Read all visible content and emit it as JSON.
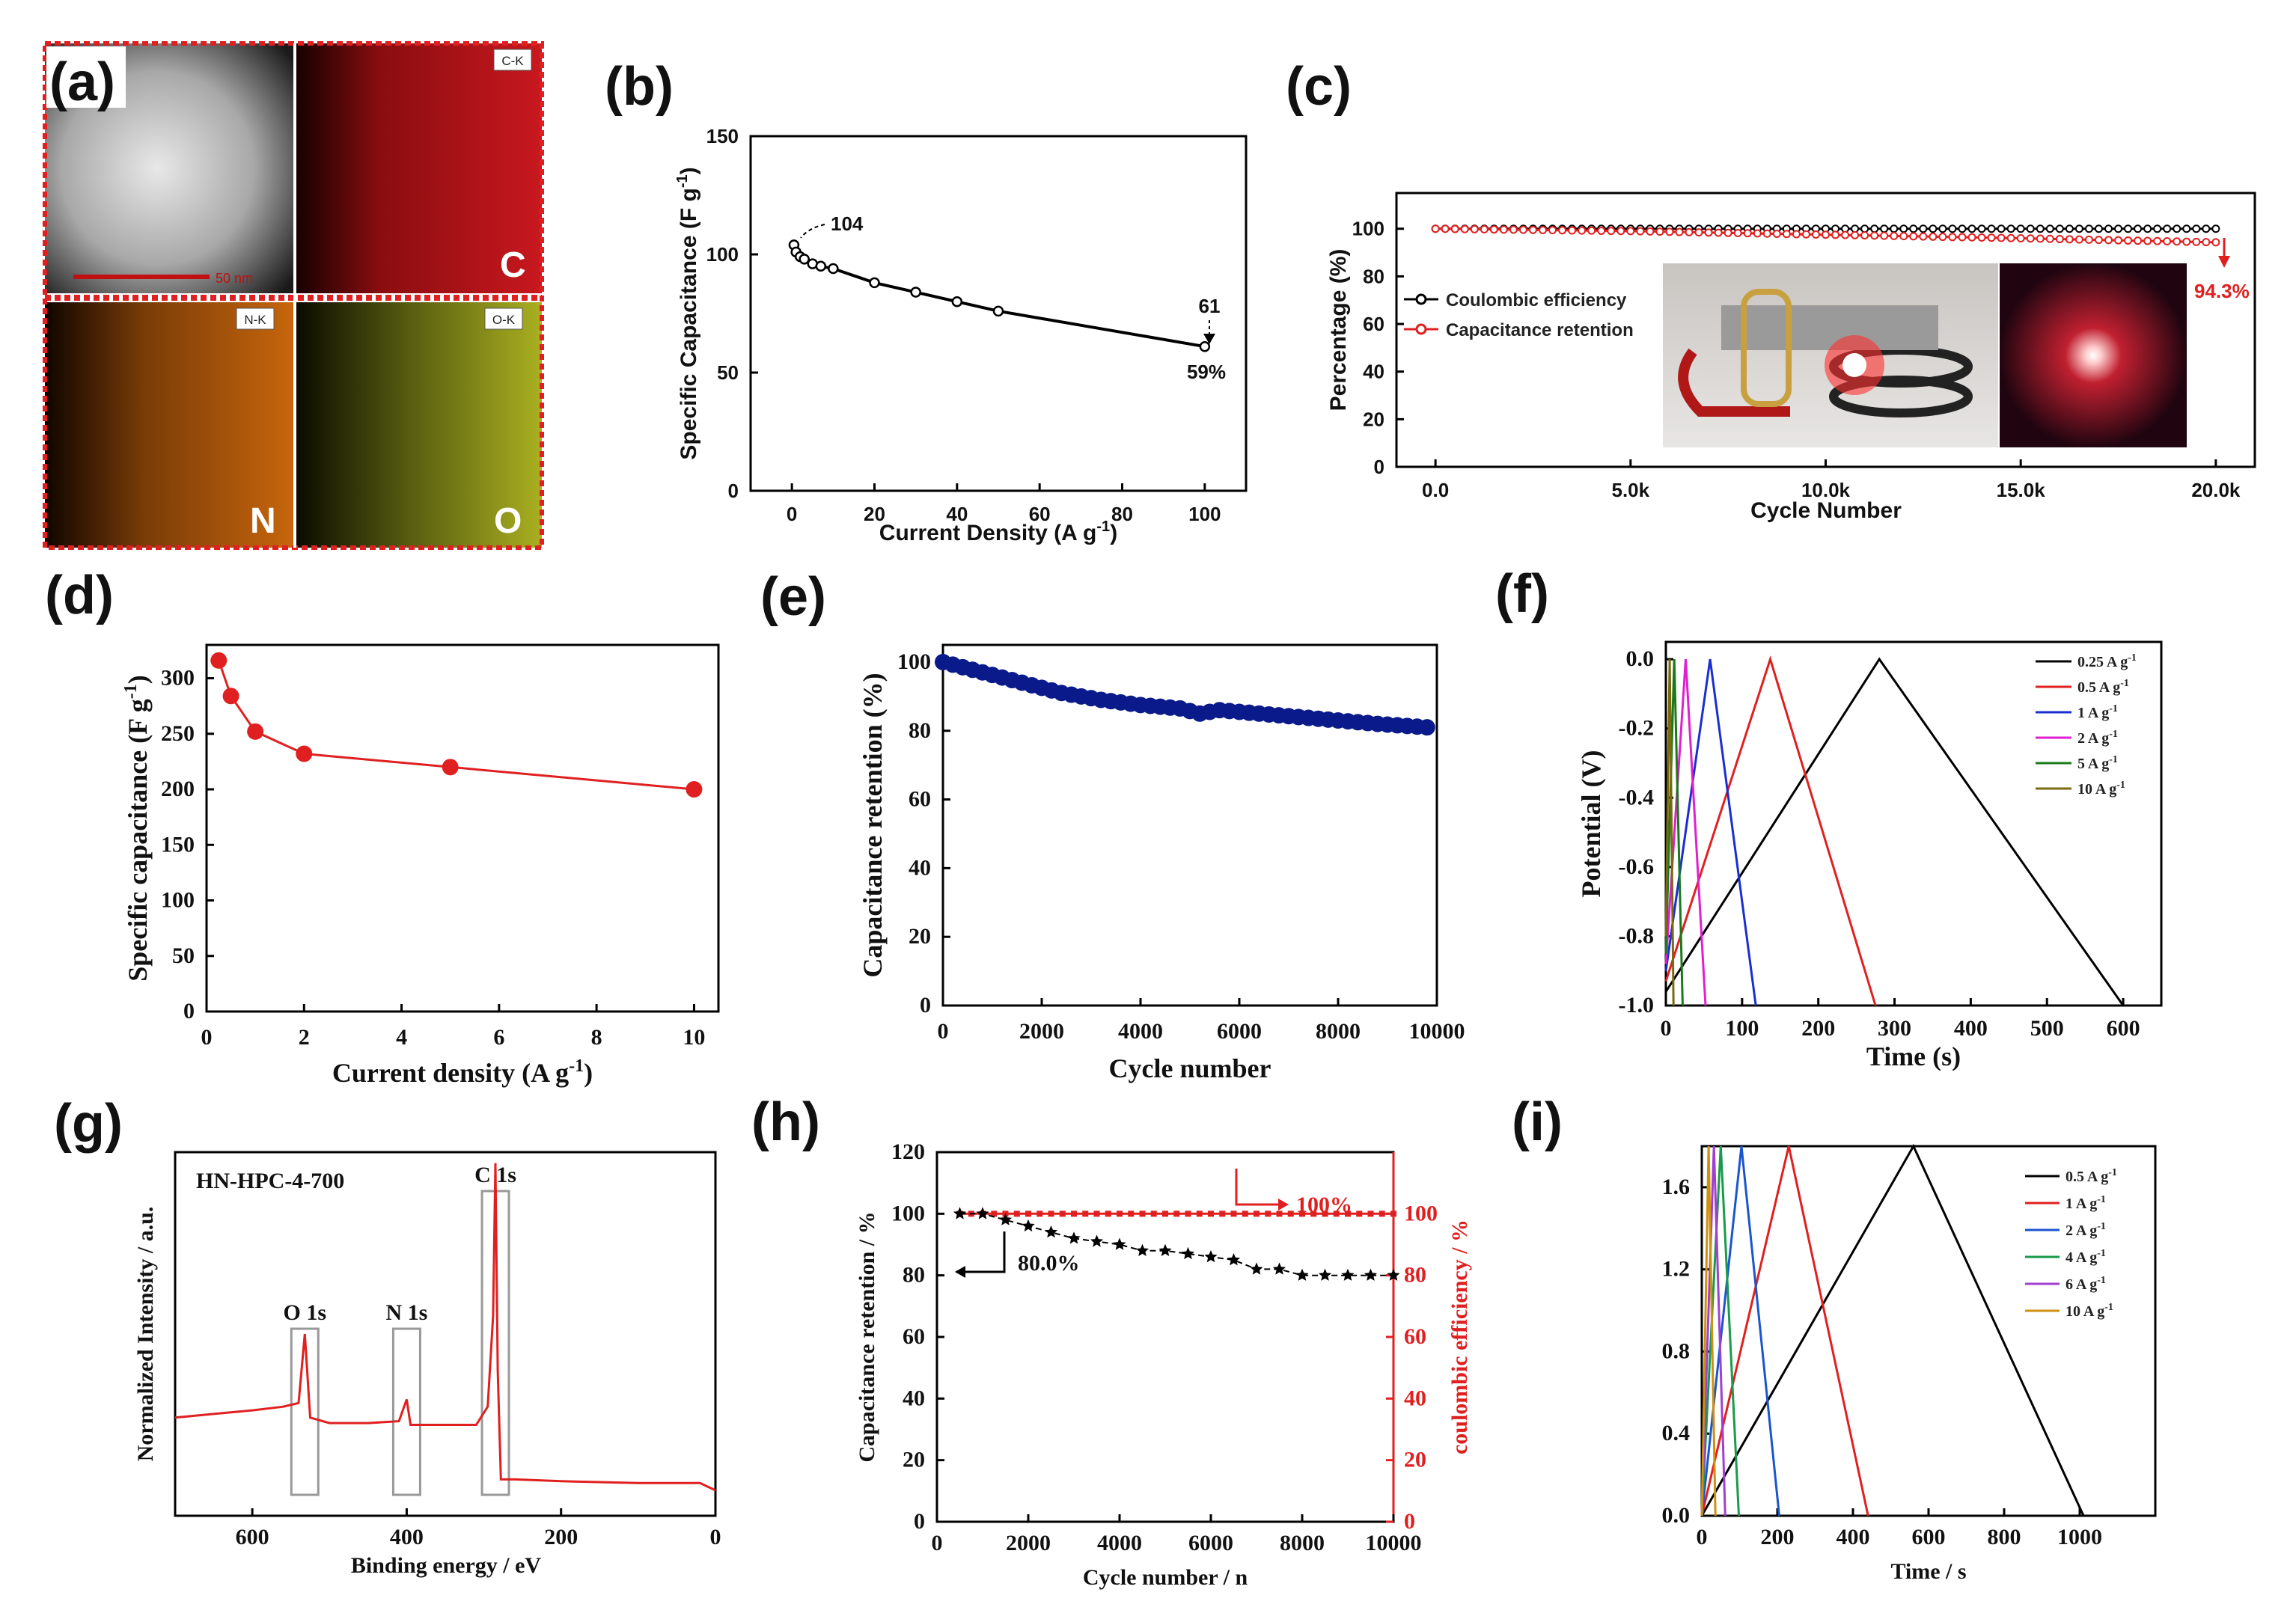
{
  "colors": {
    "map_c": "#c8181e",
    "map_n": "#c8660c",
    "map_o": "#aab020",
    "frame": "#e02020",
    "red": "#e02020",
    "navy": "#0a1a8a",
    "black": "#000000"
  },
  "chart_data": [
    {
      "id": "a",
      "panel_label": "(a)",
      "type": "image",
      "maps": [
        {
          "tag": "C-K",
          "element": "C"
        },
        {
          "tag": "N-K",
          "element": "N"
        },
        {
          "tag": "O-K",
          "element": "O"
        }
      ],
      "scalebar": "50 nm"
    },
    {
      "id": "b",
      "panel_label": "(b)",
      "type": "line",
      "xlabel": "Current Density (A g",
      "xlabel_sup": "-1",
      "ylabel": "Specific Capacitance (F g",
      "ylabel_sup": "-1",
      "xlim": [
        -10,
        110
      ],
      "ylim": [
        0,
        150
      ],
      "xticks": [
        0,
        20,
        40,
        60,
        80,
        100
      ],
      "yticks": [
        0,
        50,
        100,
        150
      ],
      "x": [
        0.5,
        1,
        2,
        3,
        5,
        7,
        10,
        20,
        30,
        40,
        50,
        100
      ],
      "y": [
        104,
        101,
        99,
        98,
        96,
        95,
        94,
        88,
        84,
        80,
        76,
        61
      ],
      "annotations": [
        {
          "text": "104",
          "x": 0.5,
          "y": 104
        },
        {
          "text": "61",
          "x": 100,
          "y": 61
        },
        {
          "text": "59%",
          "x": 100,
          "y": 61
        }
      ]
    },
    {
      "id": "c",
      "panel_label": "(c)",
      "type": "line",
      "xlabel": "Cycle Number",
      "ylabel": "Percentage (%)",
      "xlim": [
        -1000,
        21000
      ],
      "ylim": [
        0,
        115
      ],
      "xticks": [
        0,
        5000,
        10000,
        15000,
        20000
      ],
      "xticklabels": [
        "0.0",
        "5.0k",
        "10.0k",
        "15.0k",
        "20.0k"
      ],
      "yticks": [
        0,
        20,
        40,
        60,
        80,
        100
      ],
      "series": [
        {
          "name": "Coulombic efficiency",
          "color": "#000000",
          "x": [
            0,
            5000,
            10000,
            15000,
            20000
          ],
          "y": [
            100,
            100,
            100,
            100,
            100
          ]
        },
        {
          "name": "Capacitance retention",
          "color": "#e02020",
          "x": [
            0,
            5000,
            10000,
            15000,
            20000
          ],
          "y": [
            100,
            99,
            97.5,
            96,
            94.3
          ]
        }
      ],
      "annotations": [
        {
          "text": "94.3%",
          "x": 20000,
          "y": 94.3
        }
      ]
    },
    {
      "id": "d",
      "panel_label": "(d)",
      "type": "line",
      "xlabel": "Current density (A g",
      "xlabel_sup": "-1",
      "ylabel": "Specific capacitance (F g",
      "ylabel_sup": "-1",
      "xlim": [
        0,
        10.5
      ],
      "ylim": [
        0,
        330
      ],
      "xticks": [
        0,
        2,
        4,
        6,
        8,
        10
      ],
      "yticks": [
        0,
        50,
        100,
        150,
        200,
        250,
        300
      ],
      "x": [
        0.25,
        0.5,
        1,
        2,
        5,
        10
      ],
      "y": [
        316,
        284,
        252,
        232,
        220,
        200
      ],
      "color": "#e02020"
    },
    {
      "id": "e",
      "panel_label": "(e)",
      "type": "scatter",
      "xlabel": "Cycle number",
      "ylabel": "Capacitance retention (%)",
      "xlim": [
        0,
        10000
      ],
      "ylim": [
        0,
        105
      ],
      "xticks": [
        0,
        2000,
        4000,
        6000,
        8000,
        10000
      ],
      "yticks": [
        0,
        20,
        40,
        60,
        80,
        100
      ],
      "x": [
        0,
        800,
        1600,
        2400,
        3200,
        4000,
        4800,
        5200,
        5600,
        6400,
        7200,
        8000,
        8800,
        9800
      ],
      "y": [
        100,
        97,
        94,
        91,
        89,
        87.5,
        86.5,
        85,
        86,
        85,
        84,
        83,
        82,
        81
      ],
      "color": "#0a1a8a"
    },
    {
      "id": "f",
      "panel_label": "(f)",
      "type": "line",
      "xlabel": "Time (s)",
      "ylabel": "Potential (V)",
      "xlim": [
        0,
        650
      ],
      "ylim": [
        -1.0,
        0.05
      ],
      "xticks": [
        0,
        100,
        200,
        300,
        400,
        500,
        600
      ],
      "yticks": [
        -1.0,
        -0.8,
        -0.6,
        -0.4,
        -0.2,
        0.0
      ],
      "yticklabels": [
        "-1.0",
        "-0.8",
        "-0.6",
        "-0.4",
        "-0.2",
        "0.0"
      ],
      "series": [
        {
          "name": "0.25 A g",
          "sup": "-1",
          "color": "#000000",
          "x": [
            0,
            280,
            600
          ],
          "y": [
            -0.96,
            0,
            -1.0
          ]
        },
        {
          "name": "0.5 A g",
          "sup": "-1",
          "color": "#e02020",
          "x": [
            0,
            137,
            275
          ],
          "y": [
            -0.93,
            0,
            -1.0
          ]
        },
        {
          "name": "1 A g",
          "sup": "-1",
          "color": "#1a2ed0",
          "x": [
            0,
            58,
            118
          ],
          "y": [
            -0.9,
            0,
            -1.0
          ]
        },
        {
          "name": "2 A g",
          "sup": "-1",
          "color": "#e020d0",
          "x": [
            0,
            26,
            52
          ],
          "y": [
            -0.88,
            0,
            -1.0
          ]
        },
        {
          "name": "5 A g",
          "sup": "-1",
          "color": "#1a7a1a",
          "x": [
            0,
            11,
            22
          ],
          "y": [
            -0.85,
            0,
            -1.0
          ]
        },
        {
          "name": "10 A g",
          "sup": "-1",
          "color": "#7a6a10",
          "x": [
            0,
            5,
            10
          ],
          "y": [
            -0.8,
            0,
            -1.0
          ]
        }
      ]
    },
    {
      "id": "g",
      "panel_label": "(g)",
      "type": "line",
      "title": "HN-HPC-4-700",
      "xlabel": "Binding energy / eV",
      "ylabel": "Normalized Intensity / a.u.",
      "xlim": [
        700,
        0
      ],
      "ylim": [
        0,
        100
      ],
      "xticks": [
        600,
        400,
        200,
        0
      ],
      "peaks": [
        {
          "label": "O 1s",
          "x": 532
        },
        {
          "label": "N 1s",
          "x": 400
        },
        {
          "label": "C 1s",
          "x": 285
        }
      ],
      "x": [
        700,
        650,
        600,
        560,
        540,
        532,
        525,
        500,
        450,
        410,
        400,
        395,
        350,
        310,
        295,
        288,
        285,
        282,
        278,
        260,
        200,
        100,
        20,
        0
      ],
      "y": [
        27,
        28,
        29,
        30,
        31,
        50,
        27,
        25.5,
        25.5,
        26,
        32,
        25,
        25,
        25,
        30,
        55,
        97,
        40,
        10,
        10,
        9.5,
        9,
        9,
        7
      ],
      "color": "#e02020"
    },
    {
      "id": "h",
      "panel_label": "(h)",
      "type": "line",
      "xlabel": "Cycle number / n",
      "ylabel": "Capacitance retention / %",
      "ylabel_right": "coulombic efficiency / %",
      "xlim": [
        0,
        10000
      ],
      "ylim": [
        0,
        120
      ],
      "ylim_right": [
        0,
        120
      ],
      "xticks": [
        0,
        2000,
        4000,
        6000,
        8000,
        10000
      ],
      "yticks": [
        0,
        20,
        40,
        60,
        80,
        100,
        120
      ],
      "yticks_right": [
        0,
        20,
        40,
        60,
        80,
        100
      ],
      "series": [
        {
          "name": "Capacitance retention",
          "color": "#000000",
          "x": [
            500,
            1000,
            1500,
            2000,
            2500,
            3000,
            3500,
            4000,
            4500,
            5000,
            5500,
            6000,
            6500,
            7000,
            7500,
            8000,
            8500,
            9000,
            9500,
            10000
          ],
          "y": [
            100,
            100,
            98,
            96,
            94,
            92,
            91,
            90,
            88,
            88,
            87,
            86,
            85,
            82,
            82,
            80,
            80,
            80,
            80,
            80
          ]
        },
        {
          "name": "Coulombic efficiency",
          "color": "#e02020",
          "x": [
            500,
            10000
          ],
          "y": [
            100,
            100
          ]
        }
      ],
      "annotations": [
        {
          "text": "80.0%",
          "x": 2000,
          "y": 74
        },
        {
          "text": "100%",
          "x": 8000,
          "y": 90
        }
      ]
    },
    {
      "id": "i",
      "panel_label": "(i)",
      "type": "line",
      "xlabel": "Time / s",
      "ylabel": "",
      "xlim": [
        0,
        1200
      ],
      "ylim": [
        0,
        1.8
      ],
      "xticks": [
        0,
        200,
        400,
        600,
        800,
        1000
      ],
      "yticks": [
        0.0,
        0.4,
        0.8,
        1.2,
        1.6
      ],
      "yticklabels": [
        "0.0",
        "0.4",
        "0.8",
        "1.2",
        "1.6"
      ],
      "series": [
        {
          "name": "0.5 A g",
          "sup": "-1",
          "color": "#000000",
          "x": [
            0,
            560,
            1010
          ],
          "y": [
            0,
            1.8,
            0
          ]
        },
        {
          "name": "1 A g",
          "sup": "-1",
          "color": "#e02020",
          "x": [
            0,
            230,
            440
          ],
          "y": [
            0,
            1.8,
            0
          ]
        },
        {
          "name": "2 A g",
          "sup": "-1",
          "color": "#1a55d0",
          "x": [
            0,
            105,
            205
          ],
          "y": [
            0,
            1.8,
            0
          ]
        },
        {
          "name": "4 A g",
          "sup": "-1",
          "color": "#1a9a4a",
          "x": [
            0,
            50,
            98
          ],
          "y": [
            0,
            1.8,
            0
          ]
        },
        {
          "name": "6 A g",
          "sup": "-1",
          "color": "#a040d0",
          "x": [
            0,
            32,
            62
          ],
          "y": [
            0,
            1.8,
            0
          ]
        },
        {
          "name": "10 A g",
          "sup": "-1",
          "color": "#d09010",
          "x": [
            0,
            18,
            36
          ],
          "y": [
            0,
            1.8,
            0
          ]
        }
      ]
    }
  ]
}
